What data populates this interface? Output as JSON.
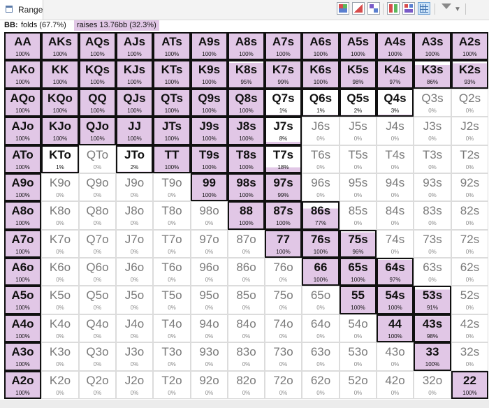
{
  "tab": {
    "label": "Range",
    "icon": "range-window-icon"
  },
  "toolbar": [
    {
      "name": "color-view-1-icon"
    },
    {
      "name": "color-view-2-icon"
    },
    {
      "name": "color-view-3-icon"
    },
    {
      "name": "layout-view-1-icon"
    },
    {
      "name": "layout-view-2-icon"
    },
    {
      "name": "grid-view-icon",
      "selected": true
    },
    {
      "name": "filter-icon"
    },
    {
      "name": "more-icon"
    }
  ],
  "info": {
    "player": "BB:",
    "folds": "folds (67.7%)",
    "raises": "raises 13.76bb (32.3%)"
  },
  "colors": {
    "raise": "#e1c7e6",
    "fold": "#ffffff",
    "border": "#101010"
  },
  "hands": [
    [
      [
        "AA",
        "100%"
      ],
      [
        "AKs",
        "100%"
      ],
      [
        "AQs",
        "100%"
      ],
      [
        "AJs",
        "100%"
      ],
      [
        "ATs",
        "100%"
      ],
      [
        "A9s",
        "100%"
      ],
      [
        "A8s",
        "100%"
      ],
      [
        "A7s",
        "100%"
      ],
      [
        "A6s",
        "100%"
      ],
      [
        "A5s",
        "100%"
      ],
      [
        "A4s",
        "100%"
      ],
      [
        "A3s",
        "100%"
      ],
      [
        "A2s",
        "100%"
      ]
    ],
    [
      [
        "AKo",
        "100%"
      ],
      [
        "KK",
        "100%"
      ],
      [
        "KQs",
        "100%"
      ],
      [
        "KJs",
        "100%"
      ],
      [
        "KTs",
        "100%"
      ],
      [
        "K9s",
        "100%"
      ],
      [
        "K8s",
        "95%"
      ],
      [
        "K7s",
        "99%"
      ],
      [
        "K6s",
        "100%"
      ],
      [
        "K5s",
        "98%"
      ],
      [
        "K4s",
        "97%"
      ],
      [
        "K3s",
        "86%"
      ],
      [
        "K2s",
        "93%"
      ]
    ],
    [
      [
        "AQo",
        "100%"
      ],
      [
        "KQo",
        "100%"
      ],
      [
        "QQ",
        "100%"
      ],
      [
        "QJs",
        "100%"
      ],
      [
        "QTs",
        "100%"
      ],
      [
        "Q9s",
        "100%"
      ],
      [
        "Q8s",
        "100%"
      ],
      [
        "Q7s",
        "1%"
      ],
      [
        "Q6s",
        "1%"
      ],
      [
        "Q5s",
        "2%"
      ],
      [
        "Q4s",
        "3%"
      ],
      [
        "Q3s",
        "0%"
      ],
      [
        "Q2s",
        "0%"
      ]
    ],
    [
      [
        "AJo",
        "100%"
      ],
      [
        "KJo",
        "100%"
      ],
      [
        "QJo",
        "100%"
      ],
      [
        "JJ",
        "100%"
      ],
      [
        "JTs",
        "100%"
      ],
      [
        "J9s",
        "100%"
      ],
      [
        "J8s",
        "100%"
      ],
      [
        "J7s",
        "8%"
      ],
      [
        "J6s",
        "0%"
      ],
      [
        "J5s",
        "0%"
      ],
      [
        "J4s",
        "0%"
      ],
      [
        "J3s",
        "0%"
      ],
      [
        "J2s",
        "0%"
      ]
    ],
    [
      [
        "ATo",
        "100%"
      ],
      [
        "KTo",
        "1%"
      ],
      [
        "QTo",
        "0%"
      ],
      [
        "JTo",
        "2%"
      ],
      [
        "TT",
        "100%"
      ],
      [
        "T9s",
        "100%"
      ],
      [
        "T8s",
        "100%"
      ],
      [
        "T7s",
        "18%"
      ],
      [
        "T6s",
        "0%"
      ],
      [
        "T5s",
        "0%"
      ],
      [
        "T4s",
        "0%"
      ],
      [
        "T3s",
        "0%"
      ],
      [
        "T2s",
        "0%"
      ]
    ],
    [
      [
        "A9o",
        "100%"
      ],
      [
        "K9o",
        "0%"
      ],
      [
        "Q9o",
        "0%"
      ],
      [
        "J9o",
        "0%"
      ],
      [
        "T9o",
        "0%"
      ],
      [
        "99",
        "100%"
      ],
      [
        "98s",
        "100%"
      ],
      [
        "97s",
        "99%"
      ],
      [
        "96s",
        "0%"
      ],
      [
        "95s",
        "0%"
      ],
      [
        "94s",
        "0%"
      ],
      [
        "93s",
        "0%"
      ],
      [
        "92s",
        "0%"
      ]
    ],
    [
      [
        "A8o",
        "100%"
      ],
      [
        "K8o",
        "0%"
      ],
      [
        "Q8o",
        "0%"
      ],
      [
        "J8o",
        "0%"
      ],
      [
        "T8o",
        "0%"
      ],
      [
        "98o",
        "0%"
      ],
      [
        "88",
        "100%"
      ],
      [
        "87s",
        "100%"
      ],
      [
        "86s",
        "77%"
      ],
      [
        "85s",
        "0%"
      ],
      [
        "84s",
        "0%"
      ],
      [
        "83s",
        "0%"
      ],
      [
        "82s",
        "0%"
      ]
    ],
    [
      [
        "A7o",
        "100%"
      ],
      [
        "K7o",
        "0%"
      ],
      [
        "Q7o",
        "0%"
      ],
      [
        "J7o",
        "0%"
      ],
      [
        "T7o",
        "0%"
      ],
      [
        "97o",
        "0%"
      ],
      [
        "87o",
        "0%"
      ],
      [
        "77",
        "100%"
      ],
      [
        "76s",
        "100%"
      ],
      [
        "75s",
        "96%"
      ],
      [
        "74s",
        "0%"
      ],
      [
        "73s",
        "0%"
      ],
      [
        "72s",
        "0%"
      ]
    ],
    [
      [
        "A6o",
        "100%"
      ],
      [
        "K6o",
        "0%"
      ],
      [
        "Q6o",
        "0%"
      ],
      [
        "J6o",
        "0%"
      ],
      [
        "T6o",
        "0%"
      ],
      [
        "96o",
        "0%"
      ],
      [
        "86o",
        "0%"
      ],
      [
        "76o",
        "0%"
      ],
      [
        "66",
        "100%"
      ],
      [
        "65s",
        "100%"
      ],
      [
        "64s",
        "97%"
      ],
      [
        "63s",
        "0%"
      ],
      [
        "62s",
        "0%"
      ]
    ],
    [
      [
        "A5o",
        "100%"
      ],
      [
        "K5o",
        "0%"
      ],
      [
        "Q5o",
        "0%"
      ],
      [
        "J5o",
        "0%"
      ],
      [
        "T5o",
        "0%"
      ],
      [
        "95o",
        "0%"
      ],
      [
        "85o",
        "0%"
      ],
      [
        "75o",
        "0%"
      ],
      [
        "65o",
        "0%"
      ],
      [
        "55",
        "100%"
      ],
      [
        "54s",
        "100%"
      ],
      [
        "53s",
        "91%"
      ],
      [
        "52s",
        "0%"
      ]
    ],
    [
      [
        "A4o",
        "100%"
      ],
      [
        "K4o",
        "0%"
      ],
      [
        "Q4o",
        "0%"
      ],
      [
        "J4o",
        "0%"
      ],
      [
        "T4o",
        "0%"
      ],
      [
        "94o",
        "0%"
      ],
      [
        "84o",
        "0%"
      ],
      [
        "74o",
        "0%"
      ],
      [
        "64o",
        "0%"
      ],
      [
        "54o",
        "0%"
      ],
      [
        "44",
        "100%"
      ],
      [
        "43s",
        "98%"
      ],
      [
        "42s",
        "0%"
      ]
    ],
    [
      [
        "A3o",
        "100%"
      ],
      [
        "K3o",
        "0%"
      ],
      [
        "Q3o",
        "0%"
      ],
      [
        "J3o",
        "0%"
      ],
      [
        "T3o",
        "0%"
      ],
      [
        "93o",
        "0%"
      ],
      [
        "83o",
        "0%"
      ],
      [
        "73o",
        "0%"
      ],
      [
        "63o",
        "0%"
      ],
      [
        "53o",
        "0%"
      ],
      [
        "43o",
        "0%"
      ],
      [
        "33",
        "100%"
      ],
      [
        "32s",
        "0%"
      ]
    ],
    [
      [
        "A2o",
        "100%"
      ],
      [
        "K2o",
        "0%"
      ],
      [
        "Q2o",
        "0%"
      ],
      [
        "J2o",
        "0%"
      ],
      [
        "T2o",
        "0%"
      ],
      [
        "92o",
        "0%"
      ],
      [
        "82o",
        "0%"
      ],
      [
        "72o",
        "0%"
      ],
      [
        "62o",
        "0%"
      ],
      [
        "52o",
        "0%"
      ],
      [
        "42o",
        "0%"
      ],
      [
        "32o",
        "0%"
      ],
      [
        "22",
        "100%"
      ]
    ]
  ]
}
